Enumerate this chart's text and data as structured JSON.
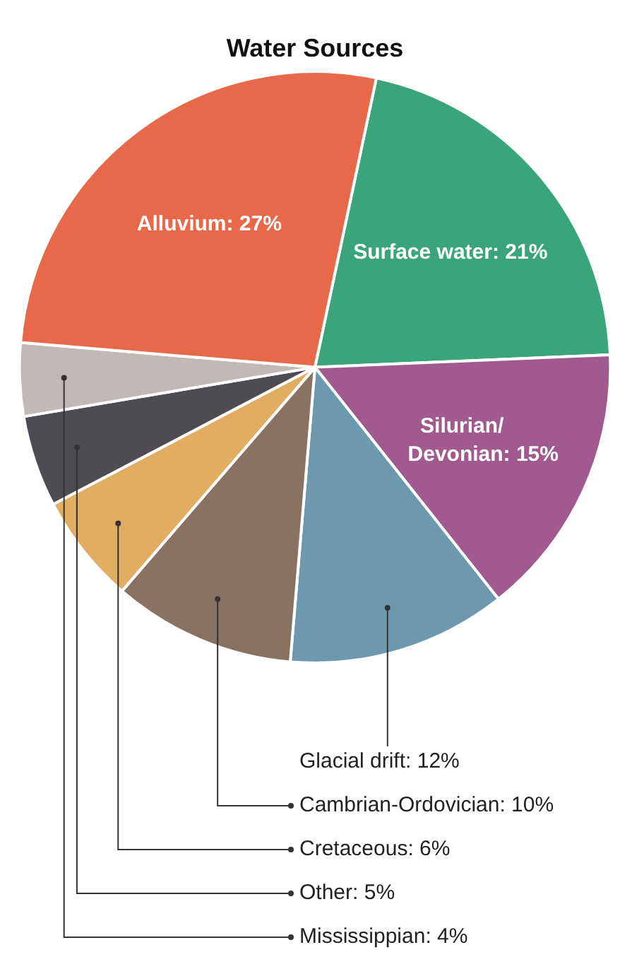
{
  "chart_data": {
    "type": "pie",
    "title": "Water Sources",
    "categories": [
      "Surface water",
      "Silurian/Devonian",
      "Glacial drift",
      "Cambrian-Ordovician",
      "Cretaceous",
      "Other",
      "Mississippian",
      "Alluvium"
    ],
    "values": [
      21,
      15,
      12,
      10,
      6,
      5,
      4,
      27
    ],
    "value_labels": [
      "21%",
      "15%",
      "12%",
      "10%",
      "6%",
      "5%",
      "4%",
      "27%"
    ],
    "colors": [
      "#3aa47a",
      "#a05a8f",
      "#6e98ae",
      "#8a7262",
      "#e0ad62",
      "#4e4b52",
      "#c2b8b6",
      "#e8694a"
    ],
    "legend": false
  }
}
